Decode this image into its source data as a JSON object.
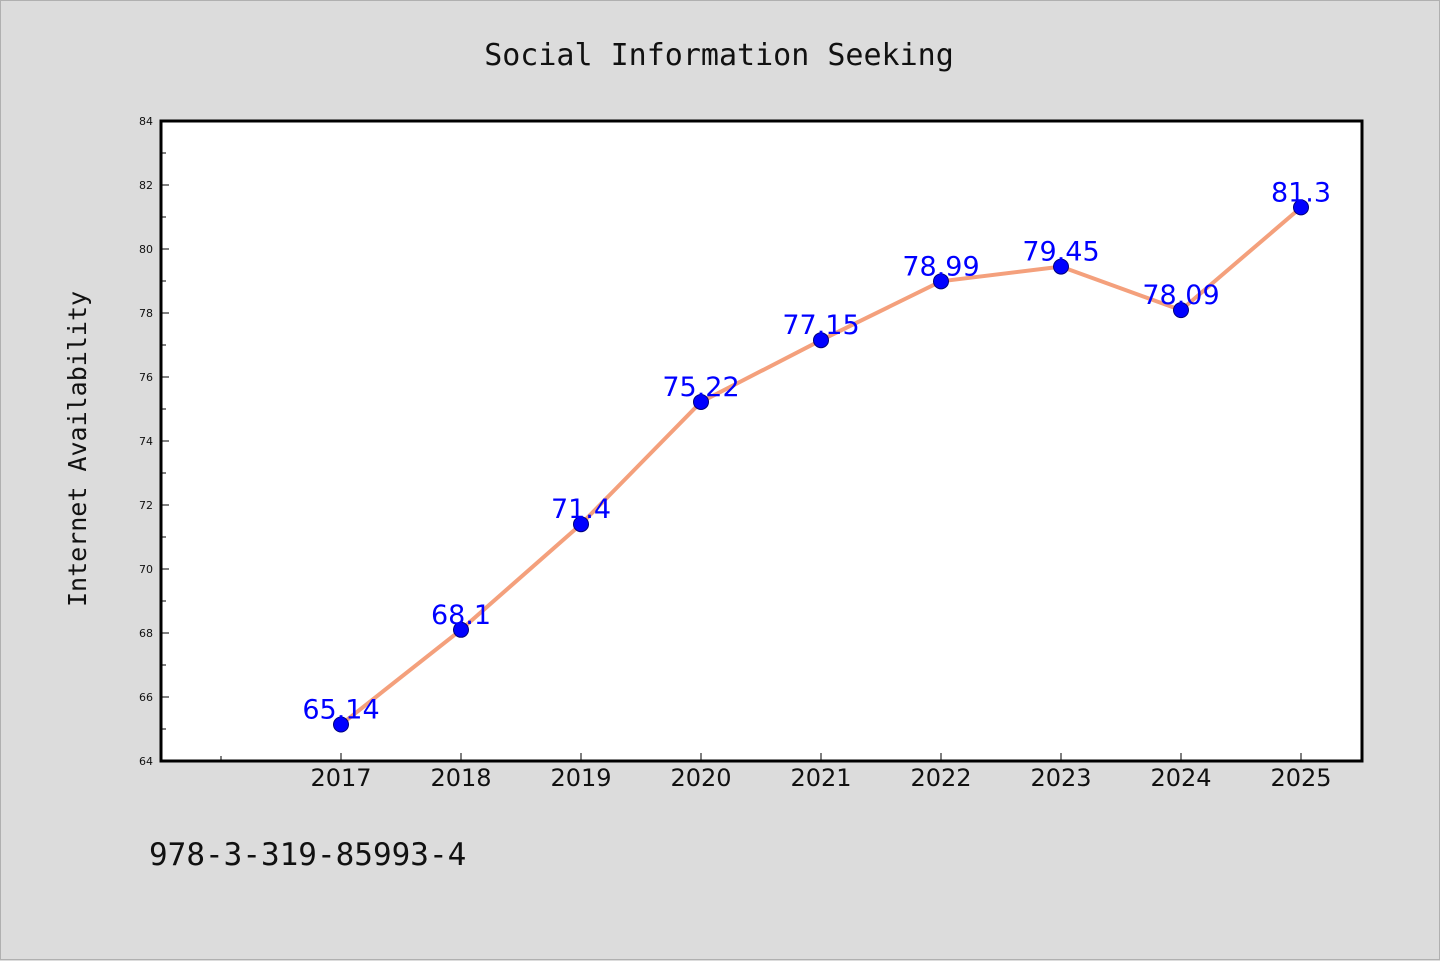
{
  "chart_data": {
    "type": "line",
    "title": "Social Information Seeking",
    "xlabel": "",
    "ylabel": "Internet Availability",
    "categories": [
      "2017",
      "2018",
      "2019",
      "2020",
      "2021",
      "2022",
      "2023",
      "2024",
      "2025"
    ],
    "series": [
      {
        "values": [
          65.14,
          68.1,
          71.4,
          75.22,
          77.15,
          78.99,
          79.45,
          78.09,
          81.3
        ],
        "labels": [
          "65.14",
          "68.1",
          "71.4",
          "75.22",
          "77.15",
          "78.99",
          "79.45",
          "78.09",
          "81.3"
        ],
        "line_color": "#f4a07c",
        "marker_color": "#0000ff"
      }
    ],
    "ylim": [
      64,
      84
    ],
    "yticks": [
      "64",
      "66",
      "68",
      "70",
      "72",
      "74",
      "76",
      "78",
      "80",
      "82",
      "84"
    ],
    "grid": false,
    "legend": "none"
  },
  "footnote": "978-3-319-85993-4",
  "colors": {
    "background": "#dcdcdc",
    "plot_area": "#ffffff",
    "line": "#f4a07c",
    "marker": "#0000ff",
    "data_label": "#0000ff"
  }
}
